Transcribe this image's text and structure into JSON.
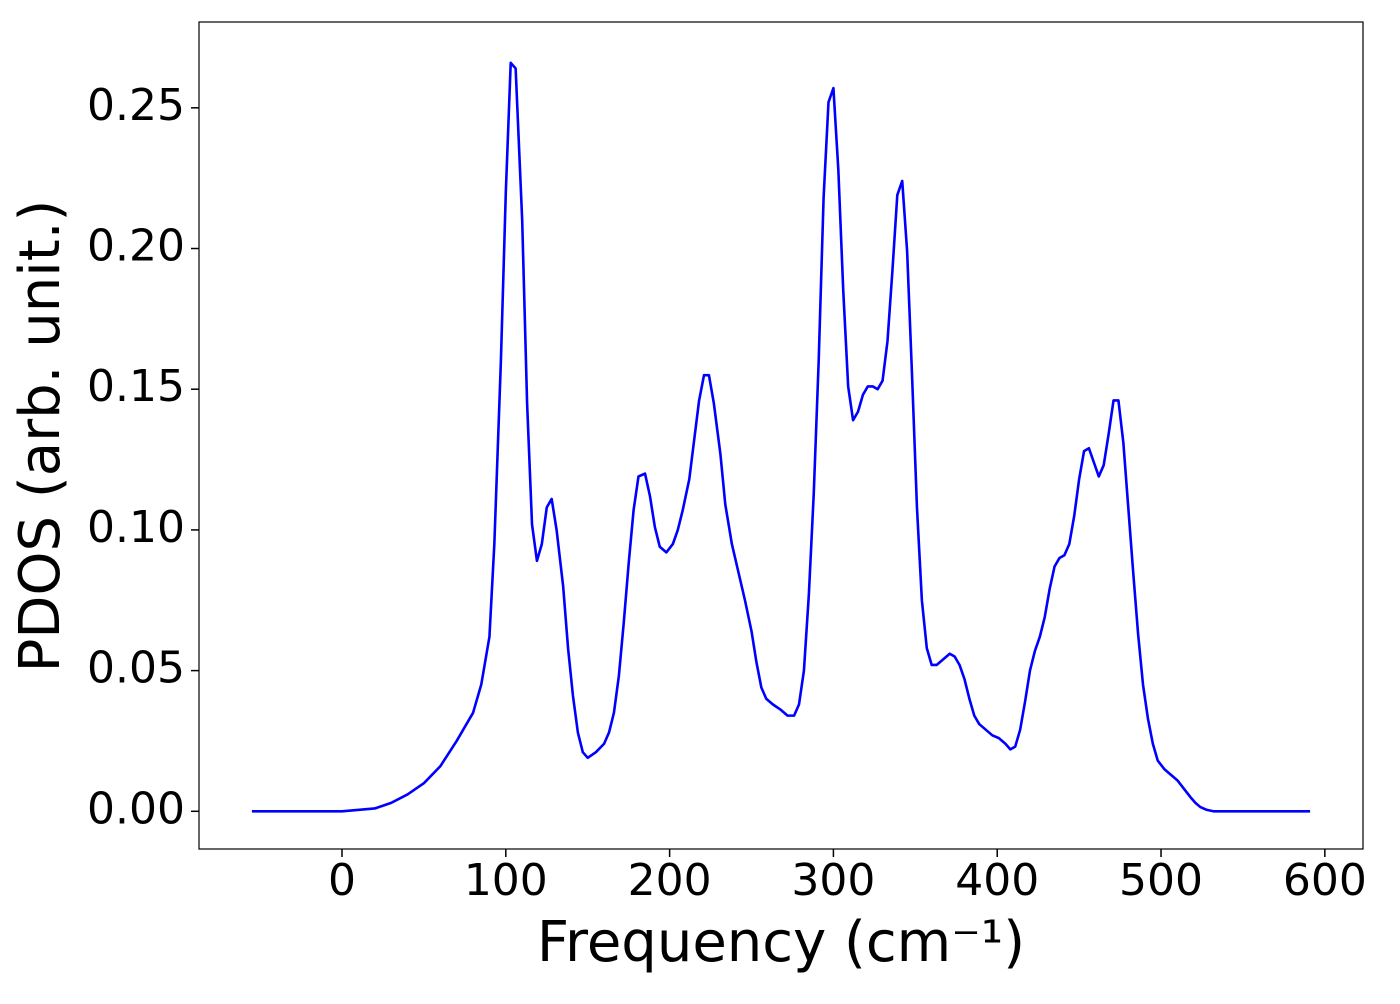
{
  "chart_data": {
    "type": "line",
    "xlabel": "Frequency (cm⁻¹)",
    "ylabel": "PDOS (arb. unit.)",
    "color": "#0000ff",
    "x": [
      -55,
      0,
      20,
      30,
      40,
      50,
      60,
      70,
      80,
      85,
      90,
      93,
      97,
      100,
      103,
      106,
      110,
      113,
      116,
      119,
      122,
      125,
      128,
      131,
      135,
      138,
      141,
      144,
      147,
      150,
      155,
      160,
      163,
      166,
      169,
      172,
      175,
      178,
      181,
      185,
      188,
      191,
      194,
      198,
      202,
      205,
      208,
      212,
      215,
      218,
      221,
      224,
      227,
      231,
      234,
      238,
      242,
      246,
      250,
      253,
      256,
      259,
      263,
      268,
      272,
      276,
      279,
      282,
      285,
      288,
      291,
      294,
      297,
      300,
      303,
      306,
      309,
      312,
      315,
      318,
      321,
      324,
      327,
      330,
      333,
      336,
      339,
      342,
      345,
      348,
      351,
      354,
      357,
      360,
      363,
      367,
      371,
      374,
      377,
      380,
      383,
      386,
      389,
      393,
      397,
      401,
      405,
      408,
      411,
      414,
      417,
      420,
      423,
      426,
      429,
      432,
      435,
      438,
      441,
      444,
      447,
      450,
      453,
      456,
      459,
      462,
      465,
      468,
      471,
      474,
      477,
      480,
      483,
      486,
      489,
      492,
      495,
      498,
      502,
      506,
      510,
      514,
      518,
      521,
      524,
      528,
      532,
      591
    ],
    "values": [
      0,
      0,
      0.001,
      0.003,
      0.006,
      0.01,
      0.016,
      0.025,
      0.035,
      0.045,
      0.062,
      0.095,
      0.16,
      0.22,
      0.266,
      0.264,
      0.21,
      0.145,
      0.102,
      0.089,
      0.095,
      0.108,
      0.111,
      0.1,
      0.08,
      0.058,
      0.041,
      0.028,
      0.021,
      0.019,
      0.021,
      0.024,
      0.028,
      0.035,
      0.048,
      0.067,
      0.088,
      0.107,
      0.119,
      0.12,
      0.112,
      0.101,
      0.094,
      0.092,
      0.095,
      0.1,
      0.107,
      0.118,
      0.132,
      0.146,
      0.155,
      0.155,
      0.145,
      0.127,
      0.109,
      0.095,
      0.085,
      0.075,
      0.064,
      0.053,
      0.044,
      0.04,
      0.038,
      0.036,
      0.034,
      0.034,
      0.038,
      0.05,
      0.077,
      0.113,
      0.16,
      0.218,
      0.252,
      0.257,
      0.228,
      0.185,
      0.151,
      0.139,
      0.142,
      0.148,
      0.151,
      0.151,
      0.15,
      0.153,
      0.167,
      0.192,
      0.219,
      0.224,
      0.199,
      0.155,
      0.108,
      0.075,
      0.058,
      0.052,
      0.052,
      0.054,
      0.056,
      0.055,
      0.052,
      0.047,
      0.04,
      0.034,
      0.031,
      0.029,
      0.027,
      0.026,
      0.024,
      0.022,
      0.023,
      0.029,
      0.039,
      0.05,
      0.057,
      0.062,
      0.069,
      0.079,
      0.087,
      0.09,
      0.091,
      0.095,
      0.105,
      0.118,
      0.128,
      0.129,
      0.124,
      0.119,
      0.123,
      0.134,
      0.146,
      0.146,
      0.131,
      0.108,
      0.085,
      0.063,
      0.045,
      0.033,
      0.024,
      0.018,
      0.015,
      0.013,
      0.011,
      0.008,
      0.005,
      0.003,
      0.0015,
      0.0005,
      0,
      0
    ],
    "xlim": [
      -87.3,
      623.3
    ],
    "ylim": [
      -0.0134,
      0.2805
    ],
    "xticks": [
      0,
      100,
      200,
      300,
      400,
      500,
      600
    ],
    "yticks": [
      {
        "value": 0,
        "label": "0.00"
      },
      0.05,
      {
        "value": 0.1,
        "label": "0.10"
      },
      0.15,
      {
        "value": 0.2,
        "label": "0.20"
      },
      0.25
    ]
  }
}
